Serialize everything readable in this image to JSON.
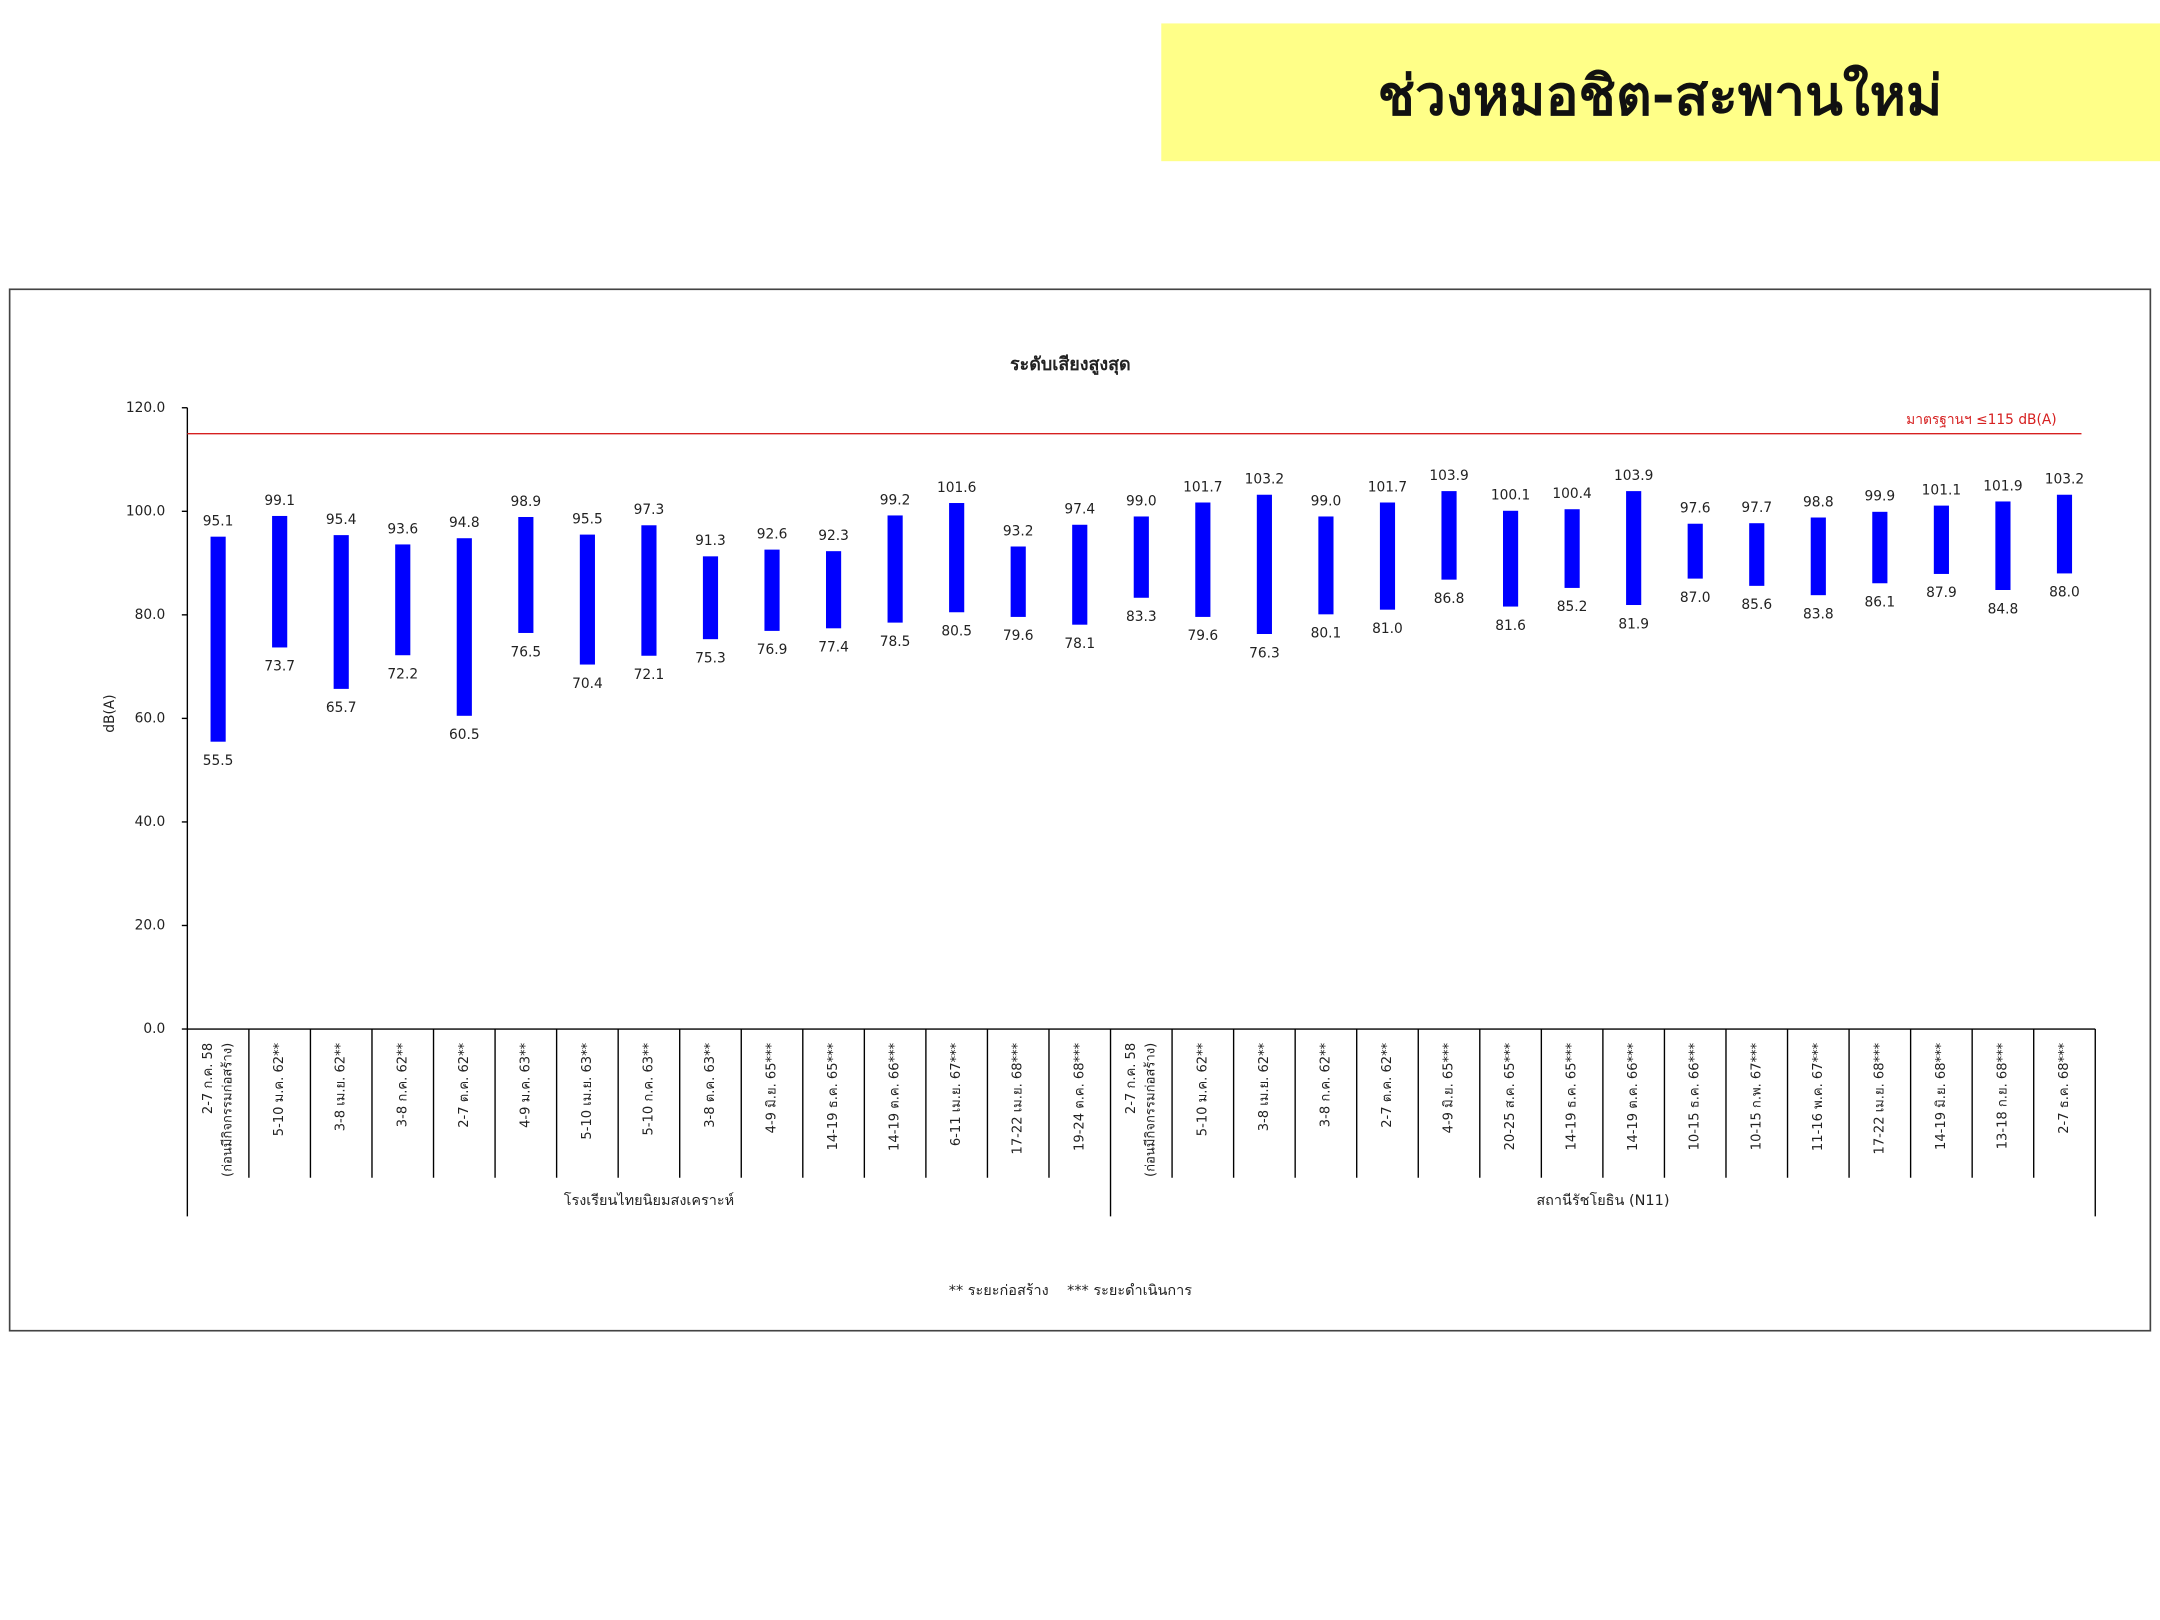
{
  "slide_title": "ช่วงหมอชิต-สะพานใหม่",
  "chart_data": {
    "type": "range-bar",
    "title": "ระดับเสียงสูงสุด",
    "y_label": "dB(A)",
    "ylim": [
      0,
      120
    ],
    "yticks": [
      {
        "value": 0,
        "label": "0.0"
      },
      {
        "value": 20,
        "label": "20.0"
      },
      {
        "value": 40,
        "label": "40.0"
      },
      {
        "value": 60,
        "label": "60.0"
      },
      {
        "value": 80,
        "label": "80.0"
      },
      {
        "value": 100,
        "label": "100.0"
      },
      {
        "value": 120,
        "label": "120.0"
      }
    ],
    "color": "#0000ff",
    "standard": {
      "value": 115,
      "label": "มาตรฐานฯ ≤115 dB(A)",
      "color": "#d62020"
    },
    "footnote": "** ระยะก่อสร้าง    *** ระยะดำเนินการ",
    "groups": [
      {
        "label": "โรงเรียนไทยนิยมสงเคราะห์",
        "categories": [
          [
            "2-7 ก.ค. 58",
            "(ก่อนมีกิจกรรมก่อสร้าง)"
          ],
          [
            "5-10 ม.ค. 62**"
          ],
          [
            "3-8 เม.ย. 62**"
          ],
          [
            "3-8 ก.ค. 62**"
          ],
          [
            "2-7 ต.ค. 62**"
          ],
          [
            "4-9 ม.ค. 63**"
          ],
          [
            "5-10 เม.ย. 63**"
          ],
          [
            "5-10 ก.ค. 63**"
          ],
          [
            "3-8 ต.ค. 63**"
          ],
          [
            "4-9 มิ.ย. 65***"
          ],
          [
            "14-19 ธ.ค. 65***"
          ],
          [
            "14-19 ต.ค. 66***"
          ],
          [
            "6-11 เม.ย. 67***"
          ],
          [
            "17-22 เม.ย. 68***"
          ],
          [
            "19-24 ต.ค. 68***"
          ]
        ],
        "high": {
          "values": [
            95.1,
            99.1,
            95.4,
            93.6,
            94.8,
            98.9,
            95.5,
            97.3,
            91.3,
            92.6,
            92.3,
            99.2,
            101.6,
            93.2,
            97.4
          ],
          "value_labels": [
            "95.1",
            "99.1",
            "95.4",
            "93.6",
            "94.8",
            "98.9",
            "95.5",
            "97.3",
            "91.3",
            "92.6",
            "92.3",
            "99.2",
            "101.6",
            "93.2",
            "97.4"
          ]
        },
        "low": {
          "values": [
            55.5,
            73.7,
            65.7,
            72.2,
            60.5,
            76.5,
            70.4,
            72.1,
            75.3,
            76.9,
            77.4,
            78.5,
            80.5,
            79.6,
            78.1
          ],
          "value_labels": [
            "55.5",
            "73.7",
            "65.7",
            "72.2",
            "60.5",
            "76.5",
            "70.4",
            "72.1",
            "75.3",
            "76.9",
            "77.4",
            "78.5",
            "80.5",
            "79.6",
            "78.1"
          ]
        }
      },
      {
        "label": "สถานีรัชโยธิน (N11)",
        "categories": [
          [
            "2-7 ก.ค. 58",
            "(ก่อนมีกิจกรรมก่อสร้าง)"
          ],
          [
            "5-10 ม.ค. 62**"
          ],
          [
            "3-8 เม.ย. 62**"
          ],
          [
            "3-8 ก.ค. 62**"
          ],
          [
            "2-7 ต.ค. 62**"
          ],
          [
            "4-9 มิ.ย. 65***"
          ],
          [
            "20-25 ส.ค. 65***"
          ],
          [
            "14-19 ธ.ค. 65***"
          ],
          [
            "14-19 ต.ค. 66***"
          ],
          [
            "10-15 ธ.ค. 66***"
          ],
          [
            "10-15 ก.พ. 67***"
          ],
          [
            "11-16 พ.ค. 67***"
          ],
          [
            "17-22 เม.ย. 68***"
          ],
          [
            "14-19 มิ.ย. 68***"
          ],
          [
            "13-18 ก.ย. 68***"
          ],
          [
            "2-7 ธ.ค. 68***"
          ]
        ],
        "high": {
          "values": [
            99.0,
            101.7,
            103.2,
            99.0,
            101.7,
            103.9,
            100.1,
            100.4,
            103.9,
            97.6,
            97.7,
            98.8,
            99.9,
            101.1,
            101.9,
            103.2
          ],
          "value_labels": [
            "99.0",
            "101.7",
            "103.2",
            "99.0",
            "101.7",
            "103.9",
            "100.1",
            "100.4",
            "103.9",
            "97.6",
            "97.7",
            "98.8",
            "99.9",
            "101.1",
            "101.9",
            "103.2"
          ]
        },
        "low": {
          "values": [
            83.3,
            79.6,
            76.3,
            80.1,
            81.0,
            86.8,
            81.6,
            85.2,
            81.9,
            87.0,
            85.6,
            83.8,
            86.1,
            87.9,
            84.8,
            88.0
          ],
          "value_labels": [
            "83.3",
            "79.6",
            "76.3",
            "80.1",
            "81.0",
            "86.8",
            "81.6",
            "85.2",
            "81.9",
            "87.0",
            "85.6",
            "83.8",
            "86.1",
            "87.9",
            "84.8",
            "88.0"
          ]
        }
      }
    ]
  }
}
